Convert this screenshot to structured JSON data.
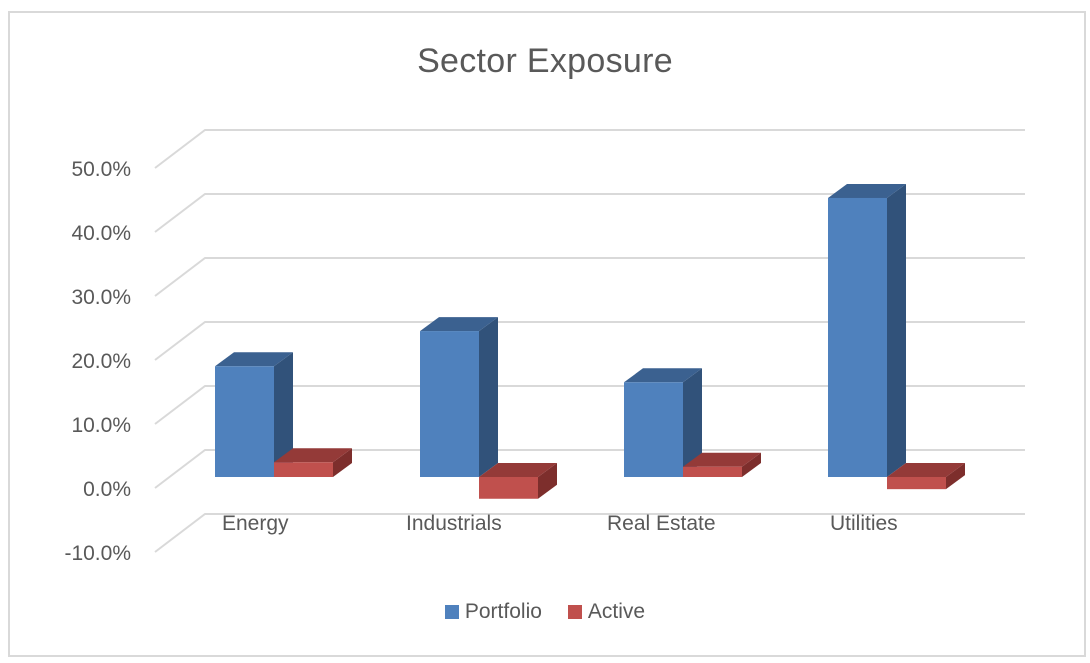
{
  "chart_data": {
    "type": "bar",
    "variant": "3d-clustered-column",
    "title": "Sector Exposure",
    "categories": [
      "Energy",
      "Industrials",
      "Real Estate",
      "Utilities"
    ],
    "series": [
      {
        "name": "Portfolio",
        "values": [
          0.173,
          0.228,
          0.148,
          0.436
        ],
        "color": "#4f81bd",
        "side_color": "#31527a",
        "top_color": "#3b6190"
      },
      {
        "name": "Active",
        "values": [
          0.023,
          -0.034,
          0.016,
          -0.019
        ],
        "color": "#c0504d",
        "side_color": "#7d2e2c",
        "top_color": "#943a38"
      }
    ],
    "xlabel": "",
    "ylabel": "",
    "ylim": [
      -0.1,
      0.5
    ],
    "yticks": [
      "50.0%",
      "40.0%",
      "30.0%",
      "20.0%",
      "10.0%",
      "0.0%",
      "-10.0%"
    ],
    "ytick_values": [
      0.5,
      0.4,
      0.3,
      0.2,
      0.1,
      0.0,
      -0.1
    ],
    "grid": true,
    "legend_position": "bottom"
  },
  "legend": {
    "items": [
      {
        "label": "Portfolio",
        "color": "#4f81bd"
      },
      {
        "label": "Active",
        "color": "#c0504d"
      }
    ]
  }
}
